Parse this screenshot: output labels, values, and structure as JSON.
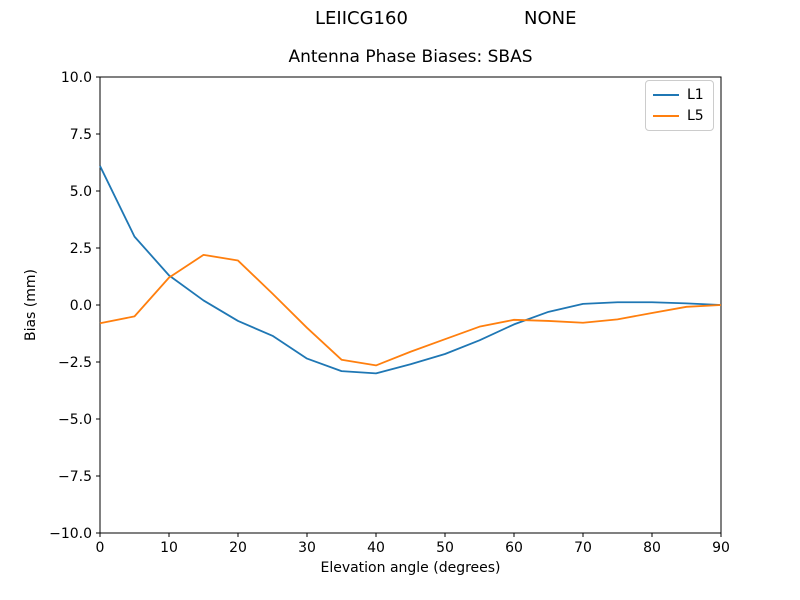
{
  "figure": {
    "suptitle_left": "LEIICG160",
    "suptitle_right": "NONE",
    "suptitle_full": "LEIICG160        NONE"
  },
  "chart_data": {
    "type": "line",
    "suptitle": "LEIICG160        NONE",
    "title": "Antenna Phase Biases: SBAS",
    "xlabel": "Elevation angle (degrees)",
    "ylabel": "Bias (mm)",
    "xlim": [
      0,
      90
    ],
    "ylim": [
      -10,
      10
    ],
    "grid": false,
    "xticks": {
      "values": [
        0,
        10,
        20,
        30,
        40,
        50,
        60,
        70,
        80,
        90
      ],
      "labels": [
        "0",
        "10",
        "20",
        "30",
        "40",
        "50",
        "60",
        "70",
        "80",
        "90"
      ]
    },
    "yticks": {
      "values": [
        10,
        7.5,
        5,
        2.5,
        0,
        -2.5,
        -5,
        -7.5,
        -10
      ],
      "labels": [
        "10.0",
        "7.5",
        "5.0",
        "2.5",
        "0.0",
        "−2.5",
        "−5.0",
        "−7.5",
        "−10.0"
      ]
    },
    "x": [
      0,
      5,
      10,
      15,
      20,
      25,
      30,
      35,
      40,
      45,
      50,
      55,
      60,
      65,
      70,
      75,
      80,
      85,
      90
    ],
    "series": [
      {
        "name": "L1",
        "color": "#1f77b4",
        "values": [
          6.1,
          3.0,
          1.3,
          0.2,
          -0.7,
          -1.35,
          -2.35,
          -2.9,
          -3.0,
          -2.6,
          -2.15,
          -1.55,
          -0.85,
          -0.3,
          0.05,
          0.12,
          0.12,
          0.07,
          0.0
        ]
      },
      {
        "name": "L5",
        "color": "#ff7f0e",
        "values": [
          -0.8,
          -0.5,
          1.2,
          2.2,
          1.95,
          0.5,
          -1.0,
          -2.4,
          -2.65,
          -2.05,
          -1.5,
          -0.95,
          -0.65,
          -0.7,
          -0.78,
          -0.63,
          -0.35,
          -0.08,
          0.0
        ]
      }
    ],
    "legend": {
      "position": "upper right",
      "labels": [
        "L1",
        "L5"
      ]
    },
    "colors": {
      "axes": "#000000",
      "background": "#ffffff",
      "legend_border": "#cccccc"
    }
  }
}
